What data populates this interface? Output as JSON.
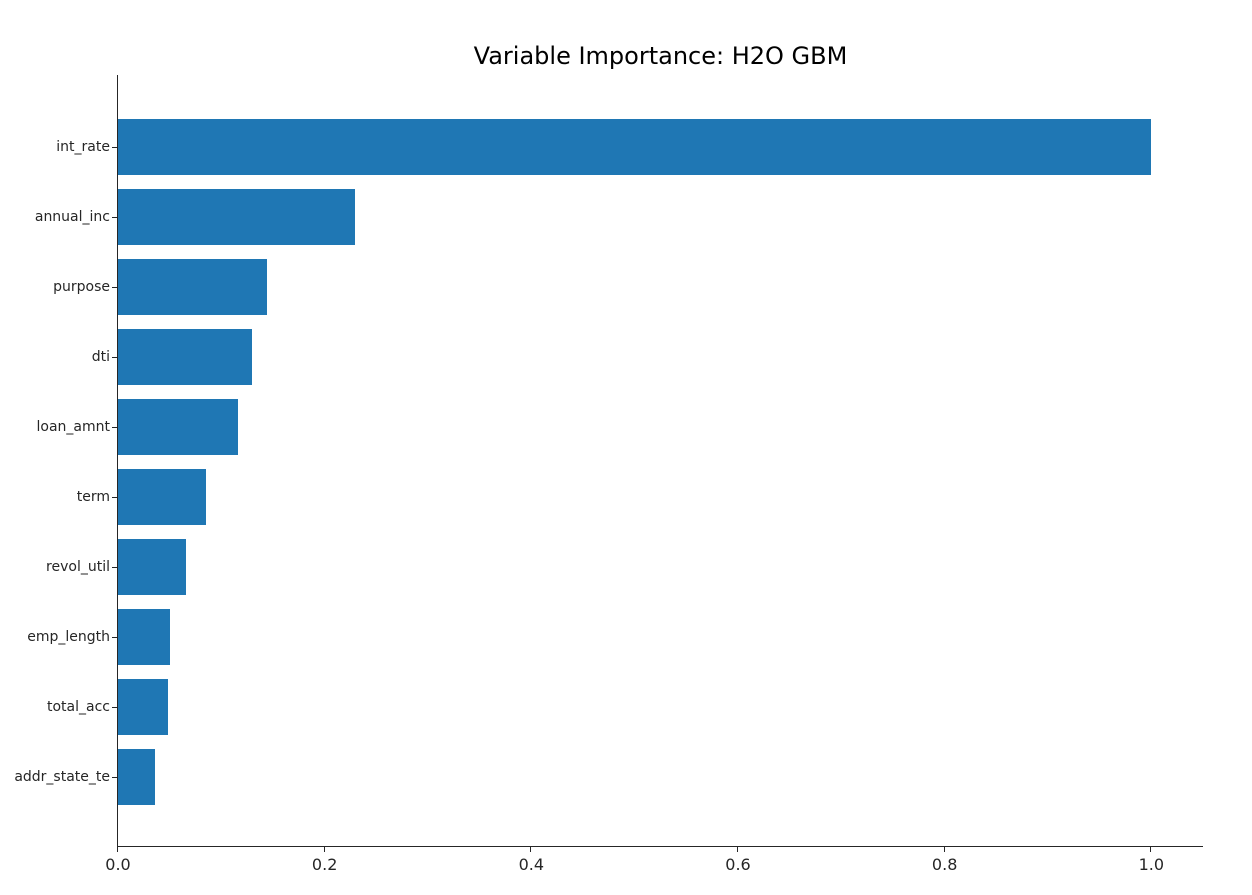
{
  "figure": {
    "background_color": "#ffffff"
  },
  "chart_data": {
    "type": "bar",
    "orientation": "horizontal",
    "title": "Variable Importance: H2O GBM",
    "xlabel": "",
    "ylabel": "",
    "categories": [
      "int_rate",
      "annual_inc",
      "purpose",
      "dti",
      "loan_amnt",
      "term",
      "revol_util",
      "emp_length",
      "total_acc",
      "addr_state_te"
    ],
    "values": [
      1.0,
      0.229,
      0.144,
      0.13,
      0.116,
      0.085,
      0.066,
      0.05,
      0.048,
      0.036
    ],
    "series_name": "scaled_importance",
    "xlim": [
      0,
      1.05
    ],
    "x_ticks": [
      0.0,
      0.2,
      0.4,
      0.6,
      0.8,
      1.0
    ],
    "x_tick_labels": [
      "0.0",
      "0.2",
      "0.4",
      "0.6",
      "0.8",
      "1.0"
    ],
    "grid": false,
    "legend_position": "none",
    "bar_color": "#1f77b4",
    "axis_color": "#262626",
    "text_color": "#262626",
    "title_color": "#000000"
  }
}
